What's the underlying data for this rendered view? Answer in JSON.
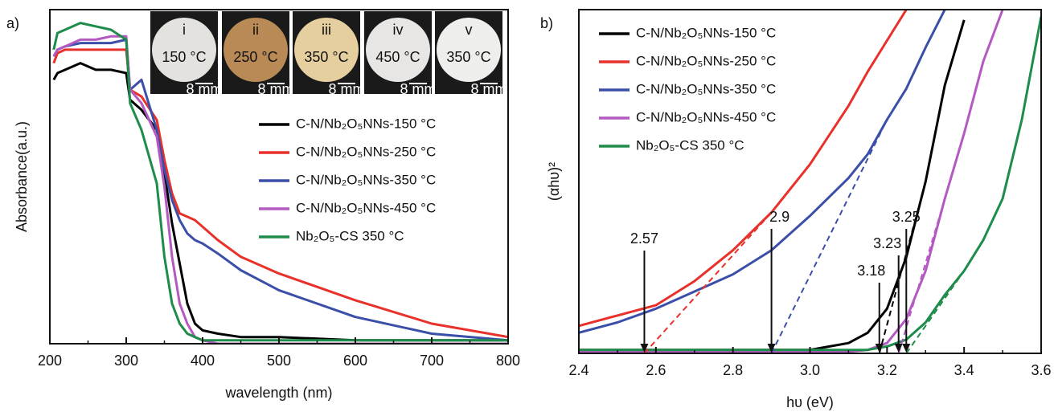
{
  "chart_data": [
    {
      "type": "line",
      "panel": "a)",
      "x_label": "wavelength (nm)",
      "y_label": "Absorbance(a.u.)",
      "xlim": [
        200,
        800
      ],
      "xticks": [
        200,
        300,
        400,
        500,
        600,
        700,
        800
      ],
      "ylim": [
        0,
        1
      ],
      "x": [
        205,
        210,
        220,
        240,
        260,
        280,
        300,
        305,
        320,
        340,
        350,
        360,
        370,
        380,
        390,
        400,
        420,
        450,
        500,
        600,
        700,
        800
      ],
      "series": [
        {
          "name": "C-N/Nb₂O₅NNs-150 °C",
          "color": "#000000",
          "values": [
            0.79,
            0.81,
            0.82,
            0.84,
            0.82,
            0.82,
            0.81,
            0.73,
            0.7,
            0.64,
            0.51,
            0.36,
            0.24,
            0.12,
            0.06,
            0.04,
            0.03,
            0.02,
            0.02,
            0.01,
            0.01,
            0.01
          ]
        },
        {
          "name": "C-N/Nb₂O₅NNs-250 °C",
          "color": "#e8312b",
          "values": [
            0.84,
            0.87,
            0.88,
            0.88,
            0.88,
            0.88,
            0.88,
            0.76,
            0.74,
            0.67,
            0.55,
            0.45,
            0.39,
            0.38,
            0.37,
            0.35,
            0.31,
            0.26,
            0.21,
            0.13,
            0.06,
            0.02
          ]
        },
        {
          "name": "C-N/Nb₂O₅NNs-350 °C",
          "color": "#3b4fa8",
          "values": [
            0.86,
            0.88,
            0.89,
            0.9,
            0.9,
            0.9,
            0.91,
            0.76,
            0.79,
            0.64,
            0.52,
            0.43,
            0.37,
            0.33,
            0.31,
            0.3,
            0.27,
            0.22,
            0.16,
            0.08,
            0.03,
            0.01
          ]
        },
        {
          "name": "C-N/Nb₂O₅NNs-450 °C",
          "color": "#b459c1",
          "values": [
            0.86,
            0.88,
            0.89,
            0.91,
            0.91,
            0.92,
            0.92,
            0.76,
            0.72,
            0.62,
            0.47,
            0.26,
            0.12,
            0.06,
            0.02,
            0.01,
            0,
            0,
            0,
            0,
            0,
            0
          ]
        },
        {
          "name": "Nb₂O₅-CS 350 °C",
          "color": "#1e8c4a",
          "values": [
            0.88,
            0.93,
            0.94,
            0.96,
            0.95,
            0.94,
            0.91,
            0.72,
            0.64,
            0.48,
            0.26,
            0.12,
            0.06,
            0.03,
            0.02,
            0.01,
            0.01,
            0.01,
            0.01,
            0.01,
            0.01,
            0.01
          ]
        }
      ],
      "insets": [
        {
          "label": "i",
          "temperature": "150 °C",
          "scale": "8 mm",
          "color": "#e4e2de"
        },
        {
          "label": "ii",
          "temperature": "250 °C",
          "scale": "8 mm",
          "color": "#b98a55"
        },
        {
          "label": "iii",
          "temperature": "350 °C",
          "scale": "8 mm",
          "color": "#e6cf9f"
        },
        {
          "label": "iv",
          "temperature": "450 °C",
          "scale": "8 mm",
          "color": "#e8e6e4"
        },
        {
          "label": "v",
          "temperature": "350 °C",
          "scale": "8 mm",
          "color": "#eeeeec"
        }
      ]
    },
    {
      "type": "line",
      "panel": "b)",
      "x_label": "hυ (eV)",
      "y_label": "(αhυ)²",
      "xlim": [
        2.4,
        3.6
      ],
      "xticks": [
        {
          "value": 2.4,
          "label": "2.4"
        },
        {
          "value": 2.6,
          "label": "2.6"
        },
        {
          "value": 2.8,
          "label": "2.8"
        },
        {
          "value": 3.0,
          "label": "3.0"
        },
        {
          "value": 3.2,
          "label": "3.2"
        },
        {
          "value": 3.4,
          "label": "3.4"
        },
        {
          "value": 3.6,
          "label": "3.6"
        }
      ],
      "ylim": [
        0,
        1
      ],
      "x": [
        2.4,
        2.5,
        2.6,
        2.7,
        2.8,
        2.9,
        3.0,
        3.1,
        3.15,
        3.2,
        3.25,
        3.3,
        3.35,
        3.4,
        3.45,
        3.5,
        3.55,
        3.6
      ],
      "series": [
        {
          "name": "C-N/Nb₂O₅NNs-150 °C",
          "color": "#000000",
          "band_gap": 3.18,
          "values": [
            0.01,
            0.01,
            0.01,
            0.01,
            0.01,
            0.01,
            0.01,
            0.03,
            0.06,
            0.13,
            0.28,
            0.5,
            0.78,
            0.97,
            null,
            null,
            null,
            null
          ]
        },
        {
          "name": "C-N/Nb₂O₅NNs-250 °C",
          "color": "#e8312b",
          "band_gap": 2.57,
          "values": [
            0.08,
            0.11,
            0.14,
            0.21,
            0.3,
            0.41,
            0.55,
            0.72,
            0.82,
            0.91,
            1.0,
            null,
            null,
            null,
            null,
            null,
            null,
            null
          ]
        },
        {
          "name": "C-N/Nb₂O₅NNs-350 °C",
          "color": "#3b4fa8",
          "band_gap": 2.9,
          "values": [
            0.06,
            0.09,
            0.13,
            0.18,
            0.23,
            0.3,
            0.4,
            0.51,
            0.58,
            0.68,
            0.77,
            0.89,
            1.0,
            null,
            null,
            null,
            null,
            null
          ]
        },
        {
          "name": "C-N/Nb₂O₅NNs-450 °C",
          "color": "#b459c1",
          "band_gap": 3.23,
          "values": [
            0.005,
            0.005,
            0.005,
            0.005,
            0.005,
            0.005,
            0.005,
            0.005,
            0.01,
            0.03,
            0.1,
            0.24,
            0.45,
            0.64,
            0.85,
            1.0,
            null,
            null
          ]
        },
        {
          "name": "Nb₂O₅-CS 350 °C",
          "color": "#1e8c4a",
          "band_gap": 3.25,
          "values": [
            0.01,
            0.01,
            0.01,
            0.01,
            0.01,
            0.01,
            0.01,
            0.01,
            0.01,
            0.02,
            0.04,
            0.09,
            0.17,
            0.24,
            0.33,
            0.45,
            0.68,
            0.98
          ]
        }
      ]
    }
  ]
}
